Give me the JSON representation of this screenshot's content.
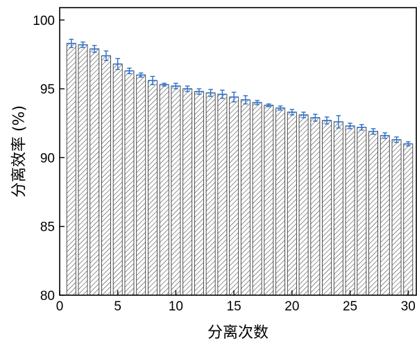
{
  "chart_data": {
    "type": "bar",
    "title": "",
    "xlabel": "分离次数",
    "ylabel": "分离效率 (%)",
    "xlim": [
      0,
      30.7
    ],
    "ylim": [
      80,
      100.9
    ],
    "xticks": [
      0,
      5,
      10,
      15,
      20,
      25,
      30
    ],
    "yticks": [
      80,
      85,
      90,
      95,
      100
    ],
    "grid": false,
    "legend": "none",
    "bar_fill": "hatched",
    "colors": {
      "bar_edge": "#3a3a3a",
      "error_bar": "#2f6fc4",
      "axis": "#000000"
    },
    "x": [
      1,
      2,
      3,
      4,
      5,
      6,
      7,
      8,
      9,
      10,
      11,
      12,
      13,
      14,
      15,
      16,
      17,
      18,
      19,
      20,
      21,
      22,
      23,
      24,
      25,
      26,
      27,
      28,
      29,
      30
    ],
    "values": [
      98.3,
      98.2,
      97.9,
      97.4,
      96.8,
      96.3,
      96.0,
      95.6,
      95.3,
      95.2,
      95.0,
      94.8,
      94.7,
      94.6,
      94.4,
      94.2,
      94.0,
      93.8,
      93.6,
      93.3,
      93.1,
      92.9,
      92.7,
      92.6,
      92.3,
      92.2,
      91.9,
      91.6,
      91.3,
      91.0
    ],
    "errors": [
      0.3,
      0.2,
      0.25,
      0.35,
      0.4,
      0.2,
      0.15,
      0.3,
      0.1,
      0.2,
      0.2,
      0.2,
      0.25,
      0.3,
      0.35,
      0.3,
      0.15,
      0.1,
      0.15,
      0.2,
      0.2,
      0.25,
      0.25,
      0.45,
      0.2,
      0.2,
      0.2,
      0.2,
      0.2,
      0.15
    ]
  }
}
